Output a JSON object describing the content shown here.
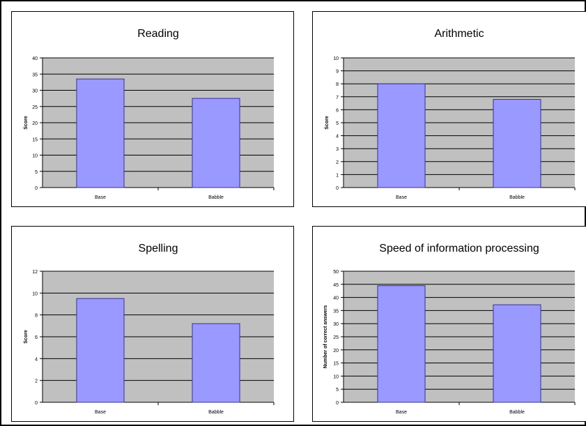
{
  "colors": {
    "plot_bg": "#c0c0c0",
    "bar_fill": "#9999ff",
    "bar_stroke": "#333399",
    "grid": "#000000"
  },
  "chart_data": [
    {
      "type": "bar",
      "title": "Reading",
      "ylabel": "Score",
      "xlabel": "",
      "categories": [
        "Base",
        "Babble"
      ],
      "values": [
        33.5,
        27.5
      ],
      "ylim": [
        0,
        40
      ],
      "yticks": [
        0,
        5,
        10,
        15,
        20,
        25,
        30,
        35,
        40
      ],
      "grid": true
    },
    {
      "type": "bar",
      "title": "Arithmetic",
      "ylabel": "Score",
      "xlabel": "",
      "categories": [
        "Base",
        "Babble"
      ],
      "values": [
        8.0,
        6.8
      ],
      "ylim": [
        0,
        10
      ],
      "yticks": [
        0,
        1,
        2,
        3,
        4,
        5,
        6,
        7,
        8,
        9,
        10
      ],
      "grid": true
    },
    {
      "type": "bar",
      "title": "Spelling",
      "ylabel": "Score",
      "xlabel": "",
      "categories": [
        "Base",
        "Babble"
      ],
      "values": [
        9.5,
        7.2
      ],
      "ylim": [
        0,
        12
      ],
      "yticks": [
        0,
        2,
        4,
        6,
        8,
        10,
        12
      ],
      "grid": true
    },
    {
      "type": "bar",
      "title": "Speed of information processing",
      "ylabel": "Number of correct answers",
      "xlabel": "",
      "categories": [
        "Base",
        "Babble"
      ],
      "values": [
        44.5,
        37.2
      ],
      "ylim": [
        0,
        50
      ],
      "yticks": [
        0,
        5,
        10,
        15,
        20,
        25,
        30,
        35,
        40,
        45,
        50
      ],
      "grid": true
    }
  ]
}
